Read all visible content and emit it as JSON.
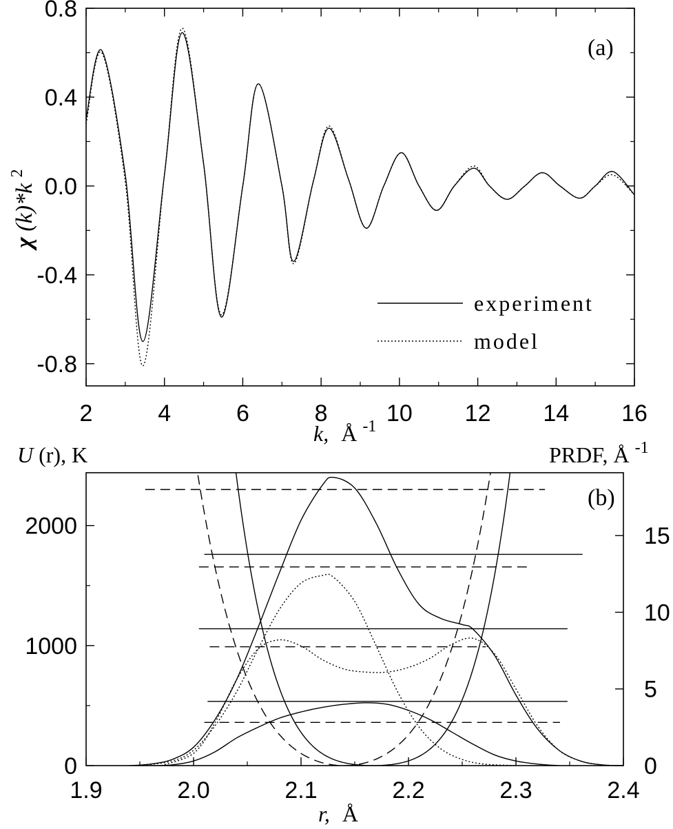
{
  "chart_data": [
    {
      "panel": "a",
      "type": "line",
      "panel_label": "(a)",
      "xlabel": "k, Å-1",
      "ylabel": "χ(k)*k2",
      "xlim": [
        2,
        16
      ],
      "ylim": [
        -0.9,
        0.8
      ],
      "x_ticks": [
        "2",
        "4",
        "6",
        "8",
        "10",
        "12",
        "14",
        "16"
      ],
      "y_ticks": [
        "0.8",
        "0.4",
        "0.0",
        "-0.4",
        "-0.8"
      ],
      "legend_position": "lower-right",
      "series": [
        {
          "name": "experiment",
          "style": "solid",
          "points": [
            [
              2.0,
              0.3
            ],
            [
              2.4,
              0.61
            ],
            [
              3.0,
              0.05
            ],
            [
              3.45,
              -0.7
            ],
            [
              4.0,
              0.05
            ],
            [
              4.45,
              0.69
            ],
            [
              5.0,
              0.1
            ],
            [
              5.45,
              -0.59
            ],
            [
              6.0,
              0.0
            ],
            [
              6.4,
              0.46
            ],
            [
              7.0,
              0.0
            ],
            [
              7.3,
              -0.34
            ],
            [
              7.8,
              0.02
            ],
            [
              8.2,
              0.26
            ],
            [
              8.7,
              0.03
            ],
            [
              9.15,
              -0.19
            ],
            [
              9.6,
              0.0
            ],
            [
              10.05,
              0.15
            ],
            [
              10.5,
              0.0
            ],
            [
              10.95,
              -0.11
            ],
            [
              11.4,
              0.0
            ],
            [
              11.9,
              0.08
            ],
            [
              12.3,
              0.0
            ],
            [
              12.75,
              -0.06
            ],
            [
              13.2,
              0.0
            ],
            [
              13.65,
              0.06
            ],
            [
              14.1,
              0.0
            ],
            [
              14.6,
              -0.055
            ],
            [
              15.0,
              0.0
            ],
            [
              15.45,
              0.065
            ],
            [
              16.0,
              -0.04
            ]
          ]
        },
        {
          "name": "model",
          "style": "dotted",
          "points": [
            [
              2.0,
              0.28
            ],
            [
              2.4,
              0.6
            ],
            [
              3.0,
              0.02
            ],
            [
              3.45,
              -0.81
            ],
            [
              4.0,
              0.05
            ],
            [
              4.45,
              0.71
            ],
            [
              5.0,
              0.1
            ],
            [
              5.45,
              -0.58
            ],
            [
              6.0,
              0.0
            ],
            [
              6.4,
              0.46
            ],
            [
              7.0,
              0.0
            ],
            [
              7.3,
              -0.35
            ],
            [
              7.8,
              0.02
            ],
            [
              8.2,
              0.27
            ],
            [
              8.7,
              0.03
            ],
            [
              9.15,
              -0.19
            ],
            [
              9.6,
              0.0
            ],
            [
              10.05,
              0.15
            ],
            [
              10.5,
              0.0
            ],
            [
              10.95,
              -0.11
            ],
            [
              11.4,
              0.0
            ],
            [
              11.9,
              0.09
            ],
            [
              12.3,
              0.0
            ],
            [
              12.75,
              -0.06
            ],
            [
              13.2,
              0.0
            ],
            [
              13.65,
              0.06
            ],
            [
              14.1,
              0.0
            ],
            [
              14.6,
              -0.055
            ],
            [
              15.0,
              0.0
            ],
            [
              15.45,
              0.05
            ],
            [
              16.0,
              -0.04
            ]
          ]
        }
      ]
    },
    {
      "panel": "b",
      "type": "line",
      "panel_label": "(b)",
      "xlabel": "r, Å",
      "ylabel_left": "U(r), K",
      "ylabel_right": "PRDF, Å-1",
      "xlim": [
        1.9,
        2.4
      ],
      "ylim_left": [
        0,
        2440
      ],
      "ylim_right": [
        0,
        19.1
      ],
      "x_ticks": [
        "1.9",
        "2.0",
        "2.1",
        "2.2",
        "2.3",
        "2.4"
      ],
      "y_ticks_left": [
        "2000",
        "1000",
        "0"
      ],
      "y_ticks_right": [
        "15",
        "10",
        "5",
        "0"
      ],
      "potentials": [
        {
          "style": "solid",
          "center": 2.167,
          "a": 28000,
          "b": 7500000,
          "xrange": [
            1.967,
            2.363
          ]
        },
        {
          "style": "dashed",
          "center": 2.14,
          "a": 57000,
          "b": 4000000,
          "xrange": [
            1.945,
            2.33
          ]
        }
      ],
      "energy_levels": [
        {
          "style": "solid",
          "U": 1760,
          "r": [
            2.01,
            2.362
          ]
        },
        {
          "style": "solid",
          "U": 1140,
          "r": [
            2.005,
            2.348
          ]
        },
        {
          "style": "solid",
          "U": 535,
          "r": [
            2.013,
            2.348
          ]
        },
        {
          "style": "dashed",
          "U": 2300,
          "r": [
            1.955,
            2.327
          ]
        },
        {
          "style": "dashed",
          "U": 1655,
          "r": [
            2.005,
            2.311
          ]
        },
        {
          "style": "dashed",
          "U": 990,
          "r": [
            2.015,
            2.272
          ]
        },
        {
          "style": "dashed",
          "U": 360,
          "r": [
            2.01,
            2.341
          ]
        }
      ],
      "prdf_series": [
        {
          "style": "solid",
          "points": [
            [
              1.94,
              0.0
            ],
            [
              1.96,
              0.1
            ],
            [
              1.98,
              0.4
            ],
            [
              2.0,
              1.2
            ],
            [
              2.02,
              3.0
            ],
            [
              2.04,
              5.6
            ],
            [
              2.06,
              9.0
            ],
            [
              2.08,
              12.6
            ],
            [
              2.1,
              16.0
            ],
            [
              2.12,
              18.3
            ],
            [
              2.13,
              18.8
            ],
            [
              2.15,
              18.1
            ],
            [
              2.17,
              15.8
            ],
            [
              2.19,
              12.8
            ],
            [
              2.21,
              10.5
            ],
            [
              2.23,
              9.6
            ],
            [
              2.25,
              9.2
            ],
            [
              2.26,
              8.9
            ],
            [
              2.28,
              7.2
            ],
            [
              2.3,
              4.6
            ],
            [
              2.32,
              2.4
            ],
            [
              2.34,
              1.0
            ],
            [
              2.36,
              0.3
            ],
            [
              2.38,
              0.05
            ],
            [
              2.4,
              0.0
            ]
          ]
        },
        {
          "style": "dotted",
          "points": [
            [
              1.95,
              0.0
            ],
            [
              1.98,
              0.3
            ],
            [
              2.0,
              1.0
            ],
            [
              2.02,
              2.6
            ],
            [
              2.04,
              4.8
            ],
            [
              2.06,
              7.6
            ],
            [
              2.08,
              10.2
            ],
            [
              2.1,
              11.9
            ],
            [
              2.12,
              12.4
            ],
            [
              2.13,
              12.3
            ],
            [
              2.15,
              10.7
            ],
            [
              2.17,
              7.8
            ],
            [
              2.19,
              4.8
            ],
            [
              2.21,
              2.5
            ],
            [
              2.23,
              1.1
            ],
            [
              2.25,
              0.4
            ],
            [
              2.27,
              0.1
            ],
            [
              2.3,
              0.0
            ]
          ]
        },
        {
          "style": "dotted",
          "points": [
            [
              1.97,
              0.0
            ],
            [
              2.0,
              0.8
            ],
            [
              2.02,
              2.8
            ],
            [
              2.04,
              5.6
            ],
            [
              2.06,
              7.6
            ],
            [
              2.08,
              8.2
            ],
            [
              2.1,
              7.8
            ],
            [
              2.12,
              6.9
            ],
            [
              2.14,
              6.3
            ],
            [
              2.16,
              6.1
            ],
            [
              2.18,
              6.1
            ],
            [
              2.2,
              6.4
            ],
            [
              2.22,
              7.0
            ],
            [
              2.24,
              7.9
            ],
            [
              2.26,
              8.3
            ],
            [
              2.28,
              7.3
            ],
            [
              2.3,
              5.0
            ],
            [
              2.32,
              2.6
            ],
            [
              2.34,
              1.0
            ],
            [
              2.36,
              0.3
            ],
            [
              2.38,
              0.05
            ],
            [
              2.4,
              0.0
            ]
          ]
        },
        {
          "style": "solid",
          "points": [
            [
              1.96,
              0.0
            ],
            [
              1.98,
              0.05
            ],
            [
              2.0,
              0.3
            ],
            [
              2.02,
              0.9
            ],
            [
              2.04,
              1.8
            ],
            [
              2.06,
              2.5
            ],
            [
              2.08,
              3.1
            ],
            [
              2.1,
              3.5
            ],
            [
              2.12,
              3.8
            ],
            [
              2.14,
              4.0
            ],
            [
              2.16,
              4.1
            ],
            [
              2.18,
              4.0
            ],
            [
              2.2,
              3.6
            ],
            [
              2.22,
              3.0
            ],
            [
              2.24,
              2.2
            ],
            [
              2.26,
              1.4
            ],
            [
              2.28,
              0.7
            ],
            [
              2.3,
              0.3
            ],
            [
              2.32,
              0.1
            ],
            [
              2.34,
              0.0
            ]
          ]
        }
      ]
    }
  ],
  "legend": {
    "experiment": "experiment",
    "model": "model"
  },
  "panel_a": {
    "label": "(a)",
    "xlabel_var": "k,",
    "xlabel_unit": "Å",
    "xlabel_exp": "-1",
    "ylabel_chi": "χ",
    "ylabel_rest": "(k)*k",
    "ylabel_exp": "2"
  },
  "panel_b": {
    "label": "(b)",
    "ylabel_left_var": "U",
    "ylabel_left_rest": "(r), K",
    "ylabel_right_main": "PRDF, Å",
    "ylabel_right_exp": "-1",
    "xlabel_var": "r,",
    "xlabel_unit": "Å"
  }
}
